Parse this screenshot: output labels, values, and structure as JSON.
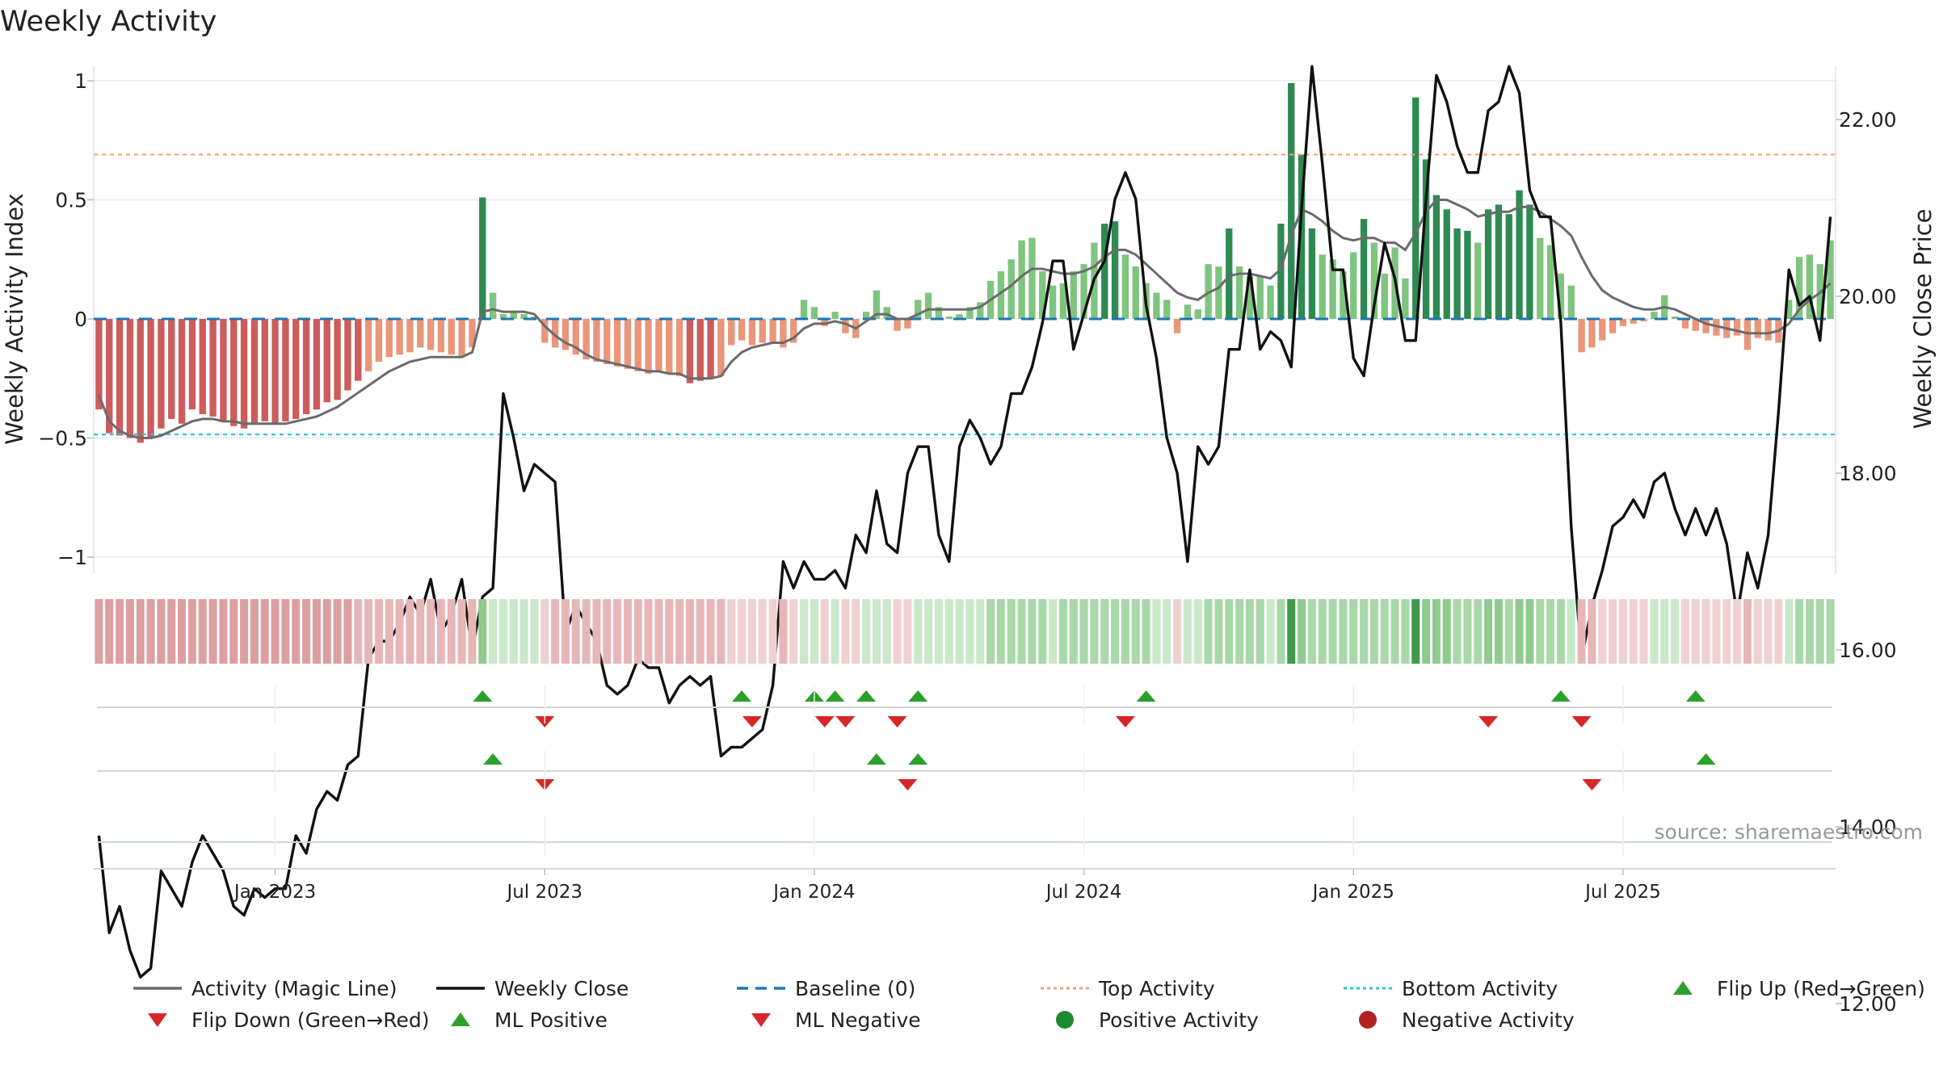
{
  "chart_data": {
    "type": "bar",
    "title": "Weekly Activity",
    "ylabel": "Weekly Activity Index",
    "y2label": "Weekly Close Price",
    "ylim": [
      -1.05,
      1.0
    ],
    "y2lim": [
      11.8,
      22.9
    ],
    "yticks": [
      {
        "v": 1,
        "label": "1"
      },
      {
        "v": 0.5,
        "label": "0.5"
      },
      {
        "v": 0,
        "label": "0"
      },
      {
        "v": -0.5,
        "label": "−0.5"
      },
      {
        "v": -1,
        "label": "−1"
      }
    ],
    "y2ticks": [
      {
        "v": 22,
        "label": "22.00"
      },
      {
        "v": 20,
        "label": "20.00"
      },
      {
        "v": 18,
        "label": "18.00"
      },
      {
        "v": 16,
        "label": "16.00"
      },
      {
        "v": 14,
        "label": "14.00"
      },
      {
        "v": 12,
        "label": "12.00"
      }
    ],
    "xticks": [
      {
        "week": 17,
        "label": "Jan 2023"
      },
      {
        "week": 43,
        "label": "Jul 2023"
      },
      {
        "week": 69,
        "label": "Jan 2024"
      },
      {
        "week": 95,
        "label": "Jul 2024"
      },
      {
        "week": 121,
        "label": "Jan 2025"
      },
      {
        "week": 147,
        "label": "Jul 2025"
      }
    ],
    "top_activity": 0.69,
    "bottom_activity": -0.485,
    "source": "source: sharemaestro.com",
    "activity": [
      -0.38,
      -0.48,
      -0.49,
      -0.5,
      -0.52,
      -0.5,
      -0.46,
      -0.42,
      -0.44,
      -0.38,
      -0.4,
      -0.41,
      -0.43,
      -0.45,
      -0.46,
      -0.44,
      -0.43,
      -0.44,
      -0.43,
      -0.42,
      -0.4,
      -0.38,
      -0.35,
      -0.34,
      -0.3,
      -0.26,
      -0.22,
      -0.18,
      -0.16,
      -0.15,
      -0.14,
      -0.12,
      -0.13,
      -0.14,
      -0.15,
      -0.16,
      -0.12,
      0.51,
      0.11,
      0.02,
      0.03,
      0.02,
      0.01,
      -0.1,
      -0.12,
      -0.13,
      -0.15,
      -0.17,
      -0.18,
      -0.19,
      -0.2,
      -0.21,
      -0.22,
      -0.23,
      -0.22,
      -0.23,
      -0.24,
      -0.27,
      -0.26,
      -0.25,
      -0.24,
      -0.11,
      -0.09,
      -0.11,
      -0.1,
      -0.1,
      -0.12,
      -0.1,
      0.08,
      0.05,
      -0.03,
      0.03,
      -0.06,
      -0.08,
      0.03,
      0.12,
      0.05,
      -0.05,
      -0.04,
      0.08,
      0.11,
      0.05,
      0.01,
      0.02,
      0.05,
      0.07,
      0.16,
      0.2,
      0.25,
      0.33,
      0.34,
      0.2,
      0.14,
      0.15,
      0.2,
      0.23,
      0.32,
      0.4,
      0.41,
      0.27,
      0.22,
      0.15,
      0.11,
      0.08,
      -0.06,
      0.06,
      0.04,
      0.23,
      0.22,
      0.38,
      0.22,
      0.18,
      0.18,
      0.14,
      0.4,
      0.99,
      0.69,
      0.38,
      0.27,
      0.25,
      0.2,
      0.28,
      0.42,
      0.32,
      0.19,
      0.3,
      0.17,
      0.93,
      0.67,
      0.52,
      0.46,
      0.38,
      0.37,
      0.32,
      0.46,
      0.48,
      0.44,
      0.54,
      0.48,
      0.34,
      0.31,
      0.19,
      0.14,
      -0.14,
      -0.12,
      -0.09,
      -0.06,
      -0.03,
      -0.02,
      -0.01,
      0.03,
      0.1,
      0.01,
      -0.04,
      -0.05,
      -0.06,
      -0.07,
      -0.08,
      -0.07,
      -0.13,
      -0.08,
      -0.09,
      -0.1,
      0.08,
      0.26,
      0.27,
      0.23,
      0.33
    ],
    "magic_line": [
      -0.32,
      -0.43,
      -0.47,
      -0.49,
      -0.5,
      -0.5,
      -0.49,
      -0.47,
      -0.45,
      -0.43,
      -0.42,
      -0.42,
      -0.43,
      -0.43,
      -0.44,
      -0.44,
      -0.44,
      -0.44,
      -0.44,
      -0.43,
      -0.42,
      -0.41,
      -0.39,
      -0.37,
      -0.34,
      -0.31,
      -0.28,
      -0.25,
      -0.22,
      -0.2,
      -0.18,
      -0.17,
      -0.16,
      -0.16,
      -0.16,
      -0.16,
      -0.14,
      0.03,
      0.04,
      0.03,
      0.03,
      0.03,
      0.02,
      -0.03,
      -0.07,
      -0.1,
      -0.12,
      -0.15,
      -0.17,
      -0.18,
      -0.19,
      -0.2,
      -0.21,
      -0.22,
      -0.22,
      -0.23,
      -0.23,
      -0.25,
      -0.25,
      -0.25,
      -0.24,
      -0.18,
      -0.14,
      -0.12,
      -0.11,
      -0.1,
      -0.1,
      -0.08,
      -0.04,
      -0.02,
      -0.02,
      -0.01,
      -0.02,
      -0.04,
      -0.01,
      0.02,
      0.02,
      0.0,
      0.0,
      0.02,
      0.04,
      0.04,
      0.04,
      0.04,
      0.04,
      0.05,
      0.08,
      0.11,
      0.14,
      0.18,
      0.21,
      0.21,
      0.2,
      0.19,
      0.19,
      0.2,
      0.22,
      0.26,
      0.29,
      0.29,
      0.27,
      0.23,
      0.19,
      0.15,
      0.11,
      0.09,
      0.08,
      0.11,
      0.13,
      0.18,
      0.19,
      0.19,
      0.18,
      0.17,
      0.21,
      0.35,
      0.46,
      0.44,
      0.41,
      0.37,
      0.34,
      0.33,
      0.34,
      0.34,
      0.32,
      0.32,
      0.29,
      0.36,
      0.45,
      0.5,
      0.5,
      0.48,
      0.46,
      0.43,
      0.44,
      0.45,
      0.45,
      0.47,
      0.47,
      0.45,
      0.42,
      0.39,
      0.35,
      0.26,
      0.18,
      0.12,
      0.09,
      0.07,
      0.05,
      0.04,
      0.04,
      0.05,
      0.04,
      0.02,
      0.0,
      -0.02,
      -0.03,
      -0.04,
      -0.05,
      -0.06,
      -0.06,
      -0.06,
      -0.05,
      -0.02,
      0.04,
      0.08,
      0.11,
      0.15
    ],
    "close": [
      13.9,
      12.8,
      13.1,
      12.6,
      12.3,
      12.4,
      13.5,
      13.3,
      13.1,
      13.6,
      13.9,
      13.7,
      13.5,
      13.1,
      13.0,
      13.3,
      13.2,
      13.3,
      13.3,
      13.9,
      13.7,
      14.2,
      14.4,
      14.3,
      14.7,
      14.8,
      15.9,
      16.1,
      16.1,
      16.3,
      16.6,
      16.4,
      16.8,
      16.2,
      16.4,
      16.8,
      16.0,
      16.6,
      16.7,
      18.9,
      18.4,
      17.8,
      18.1,
      18.0,
      17.9,
      16.2,
      16.5,
      16.3,
      16.1,
      15.6,
      15.5,
      15.6,
      15.9,
      15.8,
      15.8,
      15.4,
      15.6,
      15.7,
      15.6,
      15.7,
      14.8,
      14.9,
      14.9,
      15.0,
      15.1,
      15.6,
      17.0,
      16.7,
      17.0,
      16.8,
      16.8,
      16.9,
      16.7,
      17.3,
      17.1,
      17.8,
      17.2,
      17.1,
      18.0,
      18.3,
      18.3,
      17.3,
      17.0,
      18.3,
      18.6,
      18.4,
      18.1,
      18.3,
      18.9,
      18.9,
      19.2,
      19.7,
      20.4,
      20.4,
      19.4,
      19.8,
      20.2,
      20.4,
      21.1,
      21.4,
      21.1,
      19.9,
      19.3,
      18.4,
      18.0,
      17.0,
      18.3,
      18.1,
      18.3,
      19.4,
      19.4,
      20.3,
      19.4,
      19.6,
      19.5,
      19.2,
      21.0,
      22.6,
      21.5,
      20.3,
      20.3,
      19.3,
      19.1,
      19.9,
      20.6,
      20.2,
      19.5,
      19.5,
      21.1,
      22.5,
      22.2,
      21.7,
      21.4,
      21.4,
      22.1,
      22.2,
      22.6,
      22.3,
      21.2,
      20.9,
      20.9,
      19.7,
      17.4,
      15.9,
      16.5,
      16.9,
      17.4,
      17.5,
      17.7,
      17.5,
      17.9,
      18.0,
      17.6,
      17.3,
      17.6,
      17.3,
      17.6,
      17.2,
      16.4,
      17.1,
      16.7,
      17.3,
      18.7,
      20.3,
      19.9,
      20.0,
      19.5,
      20.9
    ],
    "flips_up": [
      37,
      62,
      69,
      71,
      74,
      79,
      101,
      141,
      154
    ],
    "flips_down": [
      43,
      63,
      70,
      72,
      77,
      99,
      134,
      143
    ],
    "ml_positive": [
      38,
      75,
      79,
      155
    ],
    "ml_negative": [
      43,
      78,
      144
    ],
    "legend": [
      {
        "label": "Activity (Magic Line)",
        "kind": "line",
        "color": "#6b6b6b"
      },
      {
        "label": "Weekly Close",
        "kind": "line",
        "color": "#111111"
      },
      {
        "label": "Baseline (0)",
        "kind": "dash",
        "color": "#1f77b4"
      },
      {
        "label": "Top Activity",
        "kind": "dot",
        "color": "#f0a46e"
      },
      {
        "label": "Bottom Activity",
        "kind": "dot",
        "color": "#2cc4d6"
      },
      {
        "label": "Flip Up (Red→Green)",
        "kind": "tri-up",
        "color": "#2ca02c"
      },
      {
        "label": "Flip Down (Green→Red)",
        "kind": "tri-down",
        "color": "#d62728"
      },
      {
        "label": "ML Positive",
        "kind": "tri-up",
        "color": "#2ca02c"
      },
      {
        "label": "ML Negative",
        "kind": "tri-down",
        "color": "#d62728"
      },
      {
        "label": "Positive Activity",
        "kind": "circle",
        "color": "#1e8a2e"
      },
      {
        "label": "Negative Activity",
        "kind": "circle",
        "color": "#b22222"
      }
    ]
  }
}
